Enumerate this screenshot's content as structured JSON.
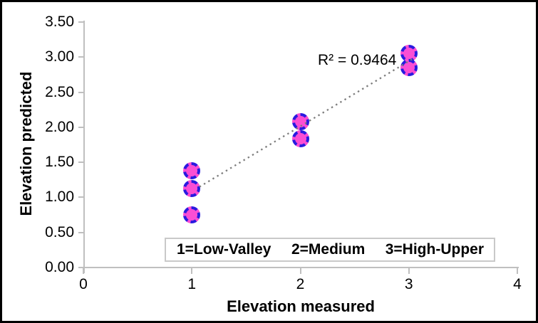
{
  "chart_data": {
    "type": "scatter",
    "xlabel": "Elevation measured",
    "ylabel": "Elevation predicted",
    "xlim": [
      0,
      4
    ],
    "ylim": [
      0,
      3.5
    ],
    "x_ticks": [
      "0",
      "1",
      "2",
      "3",
      "4"
    ],
    "y_ticks": [
      "0.00",
      "0.50",
      "1.00",
      "1.50",
      "2.00",
      "2.50",
      "3.00",
      "3.50"
    ],
    "grid": false,
    "legend_position": "inside-bottom",
    "points": [
      {
        "x": 1,
        "y": 1.37
      },
      {
        "x": 1,
        "y": 1.12
      },
      {
        "x": 1,
        "y": 0.74
      },
      {
        "x": 2,
        "y": 2.07
      },
      {
        "x": 2,
        "y": 1.83
      },
      {
        "x": 3,
        "y": 3.04
      },
      {
        "x": 3,
        "y": 2.84
      }
    ],
    "trendline": {
      "x1": 1.07,
      "y1": 1.14,
      "x2": 3.03,
      "y2": 2.96,
      "style": "dotted"
    },
    "annotation": "R² = 0.9464",
    "legend_items": [
      "1=Low-Valley",
      "2=Medium",
      "3=High-Upper"
    ],
    "colors": {
      "marker_fill": "#fb4ed4",
      "marker_border": "#2a1ae0",
      "axis": "#bfbfbf",
      "trendline": "#7d7d7d",
      "legend_border": "#c9c9c9",
      "text": "#000000"
    }
  }
}
